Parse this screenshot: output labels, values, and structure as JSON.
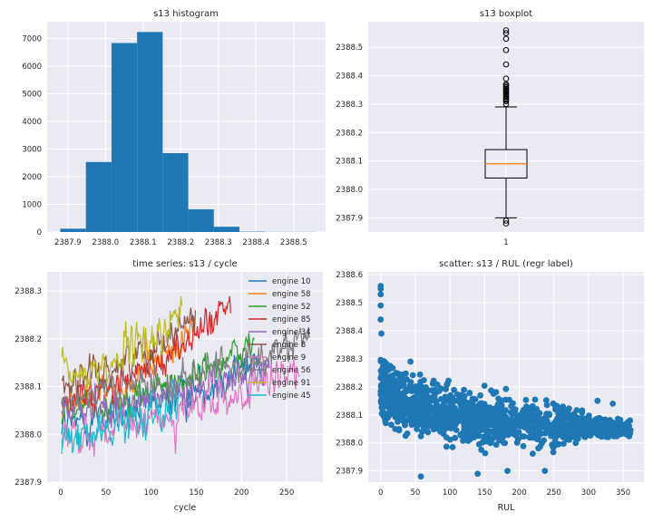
{
  "figure": {
    "background": "#ffffff",
    "axes_background": "#eaeaf2",
    "grid_color": "#ffffff"
  },
  "chart_data": [
    {
      "type": "bar",
      "title": "s13 histogram",
      "xlabel": "",
      "ylabel": "",
      "color": "#1f77b4",
      "xlim": [
        2387.845,
        2388.585
      ],
      "ylim": [
        0,
        7600
      ],
      "xticks": [
        "2387.9",
        "2388.0",
        "2388.1",
        "2388.2",
        "2388.3",
        "2388.4",
        "2388.5"
      ],
      "yticks": [
        "0",
        "1000",
        "2000",
        "3000",
        "4000",
        "5000",
        "6000",
        "7000"
      ],
      "bins": [
        {
          "from": 2387.88,
          "to": 2387.948,
          "count": 120
        },
        {
          "from": 2387.948,
          "to": 2388.016,
          "count": 2530
        },
        {
          "from": 2388.016,
          "to": 2388.084,
          "count": 6830
        },
        {
          "from": 2388.084,
          "to": 2388.152,
          "count": 7230
        },
        {
          "from": 2388.152,
          "to": 2388.22,
          "count": 2850
        },
        {
          "from": 2388.22,
          "to": 2388.288,
          "count": 820
        },
        {
          "from": 2388.288,
          "to": 2388.356,
          "count": 190
        },
        {
          "from": 2388.356,
          "to": 2388.424,
          "count": 12
        },
        {
          "from": 2388.424,
          "to": 2388.492,
          "count": 4
        },
        {
          "from": 2388.492,
          "to": 2388.56,
          "count": 4
        }
      ],
      "grid": true
    },
    {
      "type": "box",
      "title": "s13 boxplot",
      "categories": [
        "1"
      ],
      "ylim": [
        2387.85,
        2388.59
      ],
      "yticks": [
        "2387.9",
        "2388.0",
        "2388.1",
        "2388.2",
        "2388.3",
        "2388.4",
        "2388.5"
      ],
      "q1": 2388.04,
      "median": 2388.09,
      "q3": 2388.14,
      "whisker_low": 2387.9,
      "whisker_high": 2388.29,
      "median_color": "#ff7f0e",
      "outliers": [
        2387.88,
        2387.89,
        2388.3,
        2388.31,
        2388.315,
        2388.32,
        2388.325,
        2388.33,
        2388.335,
        2388.34,
        2388.345,
        2388.35,
        2388.355,
        2388.36,
        2388.365,
        2388.37,
        2388.39,
        2388.44,
        2388.49,
        2388.53,
        2388.55,
        2388.56
      ],
      "grid": true
    },
    {
      "type": "line",
      "title": "time series: s13 / cycle",
      "xlabel": "cycle",
      "ylabel": "",
      "xlim": [
        -15,
        290
      ],
      "ylim": [
        2387.9,
        2388.34
      ],
      "xticks": [
        "0",
        "50",
        "100",
        "150",
        "200",
        "250"
      ],
      "yticks": [
        "2387.9",
        "2388.0",
        "2388.1",
        "2388.2",
        "2388.3"
      ],
      "legend_position": "top-right",
      "series": [
        {
          "name": "engine 10",
          "color": "#1f77b4",
          "length": 223,
          "start": 2388.02,
          "end": 2388.16,
          "noise": 0.04
        },
        {
          "name": "engine 58",
          "color": "#ff7f0e",
          "length": 148,
          "start": 2388.06,
          "end": 2388.22,
          "noise": 0.035
        },
        {
          "name": "engine 52",
          "color": "#2ca02c",
          "length": 214,
          "start": 2388.05,
          "end": 2388.19,
          "noise": 0.035
        },
        {
          "name": "engine 85",
          "color": "#d62728",
          "length": 188,
          "start": 2388.07,
          "end": 2388.27,
          "noise": 0.035
        },
        {
          "name": "engine 34",
          "color": "#9467bd",
          "length": 231,
          "start": 2388.05,
          "end": 2388.14,
          "noise": 0.035
        },
        {
          "name": "engine 8",
          "color": "#8c564b",
          "length": 149,
          "start": 2388.11,
          "end": 2388.25,
          "noise": 0.035
        },
        {
          "name": "engine 9",
          "color": "#e377c2",
          "length": 264,
          "start": 2388.0,
          "end": 2388.13,
          "noise": 0.04
        },
        {
          "name": "engine 56",
          "color": "#7f7f7f",
          "length": 275,
          "start": 2388.08,
          "end": 2388.2,
          "noise": 0.035
        },
        {
          "name": "engine 91",
          "color": "#bcbd22",
          "length": 134,
          "start": 2388.12,
          "end": 2388.25,
          "noise": 0.045
        },
        {
          "name": "engine 45",
          "color": "#17becf",
          "length": 130,
          "start": 2387.99,
          "end": 2388.08,
          "noise": 0.04
        }
      ],
      "grid": true
    },
    {
      "type": "scatter",
      "title": "scatter: s13 / RUL (regr label)",
      "xlabel": "RUL",
      "ylabel": "",
      "color": "#1f77b4",
      "xlim": [
        -18,
        380
      ],
      "ylim": [
        2387.86,
        2388.61
      ],
      "xticks": [
        "0",
        "50",
        "100",
        "150",
        "200",
        "250",
        "300",
        "350"
      ],
      "yticks": [
        "2387.9",
        "2388.0",
        "2388.1",
        "2388.2",
        "2388.3",
        "2388.4",
        "2388.5",
        "2388.6"
      ],
      "band": [
        {
          "rul": 0,
          "low": 2388.04,
          "high": 2388.36
        },
        {
          "rul": 20,
          "low": 2388.03,
          "high": 2388.3
        },
        {
          "rul": 50,
          "low": 2387.99,
          "high": 2388.27
        },
        {
          "rul": 100,
          "low": 2387.96,
          "high": 2388.24
        },
        {
          "rul": 150,
          "low": 2387.94,
          "high": 2388.22
        },
        {
          "rul": 200,
          "low": 2387.95,
          "high": 2388.2
        },
        {
          "rul": 250,
          "low": 2387.96,
          "high": 2388.18
        },
        {
          "rul": 280,
          "low": 2387.98,
          "high": 2388.14
        },
        {
          "rul": 300,
          "low": 2388.0,
          "high": 2388.11
        },
        {
          "rul": 330,
          "low": 2388.0,
          "high": 2388.1
        },
        {
          "rul": 362,
          "low": 2388.01,
          "high": 2388.09
        }
      ],
      "points": [
        {
          "x": 0,
          "y": 2388.56
        },
        {
          "x": 0,
          "y": 2388.55
        },
        {
          "x": 0,
          "y": 2388.53
        },
        {
          "x": 0,
          "y": 2388.49
        },
        {
          "x": 0,
          "y": 2388.44
        },
        {
          "x": 1,
          "y": 2388.39
        },
        {
          "x": 58,
          "y": 2387.88
        },
        {
          "x": 140,
          "y": 2387.89
        },
        {
          "x": 183,
          "y": 2387.9
        },
        {
          "x": 43,
          "y": 2388.29
        },
        {
          "x": 313,
          "y": 2388.15
        },
        {
          "x": 335,
          "y": 2388.14
        },
        {
          "x": 360,
          "y": 2388.08
        },
        {
          "x": 355,
          "y": 2388.03
        },
        {
          "x": 237,
          "y": 2387.9
        }
      ],
      "grid": true
    }
  ]
}
